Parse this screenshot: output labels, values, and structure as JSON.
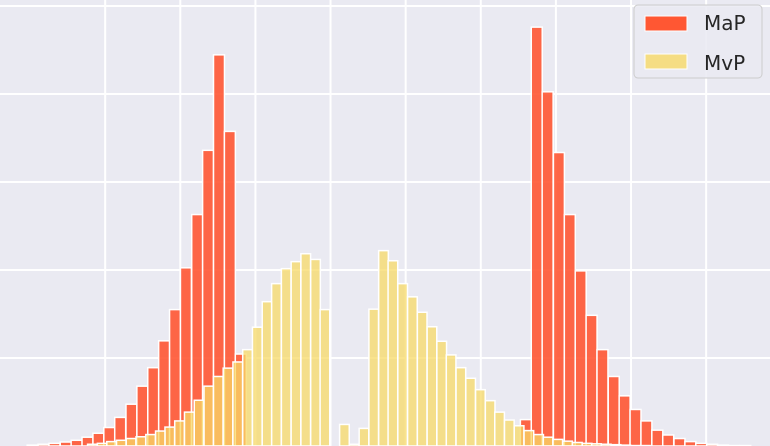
{
  "chart_data": {
    "type": "bar",
    "title": "",
    "xlabel": "",
    "ylabel": "",
    "grid": true,
    "legend_position": "top-right",
    "xlim": [
      -0.88,
      1.17
    ],
    "ylim": [
      0,
      1.0
    ],
    "bin_width": 0.0292,
    "series": [
      {
        "name": "MaP",
        "color": "#ff5733",
        "x": [
          -0.793,
          -0.764,
          -0.735,
          -0.705,
          -0.676,
          -0.647,
          -0.618,
          -0.589,
          -0.56,
          -0.53,
          -0.501,
          -0.472,
          -0.443,
          -0.414,
          -0.385,
          -0.355,
          -0.326,
          -0.297,
          -0.268,
          -0.239,
          0.52,
          0.549,
          0.578,
          0.608,
          0.637,
          0.666,
          0.695,
          0.724,
          0.754,
          0.783,
          0.812,
          0.841,
          0.87,
          0.899,
          0.929,
          0.958,
          0.987,
          1.016,
          1.045,
          1.074,
          1.104
        ],
        "values": [
          0.002,
          0.004,
          0.006,
          0.009,
          0.013,
          0.02,
          0.029,
          0.042,
          0.065,
          0.095,
          0.136,
          0.178,
          0.239,
          0.31,
          0.405,
          0.526,
          0.672,
          0.889,
          0.715,
          0.209,
          0.06,
          0.952,
          0.805,
          0.667,
          0.526,
          0.398,
          0.297,
          0.219,
          0.158,
          0.114,
          0.083,
          0.057,
          0.036,
          0.025,
          0.017,
          0.01,
          0.006,
          0.004,
          0.002,
          0.001,
          0.001
        ]
      },
      {
        "name": "MvP",
        "color": "#f7d967",
        "x": [
          -0.634,
          -0.608,
          -0.583,
          -0.557,
          -0.531,
          -0.505,
          -0.479,
          -0.453,
          -0.428,
          -0.402,
          -0.376,
          -0.35,
          -0.324,
          -0.299,
          -0.273,
          -0.247,
          -0.221,
          -0.195,
          -0.169,
          -0.144,
          -0.118,
          -0.092,
          -0.066,
          -0.04,
          -0.015,
          0.037,
          0.063,
          0.089,
          0.115,
          0.141,
          0.166,
          0.192,
          0.218,
          0.244,
          0.27,
          0.296,
          0.321,
          0.347,
          0.373,
          0.399,
          0.425,
          0.45,
          0.476,
          0.502,
          0.528,
          0.554,
          0.579,
          0.605,
          0.631,
          0.657,
          0.683,
          0.708,
          0.734,
          0.76,
          0.786,
          0.812,
          0.838
        ],
        "values": [
          0.004,
          0.006,
          0.01,
          0.013,
          0.017,
          0.021,
          0.026,
          0.034,
          0.043,
          0.057,
          0.077,
          0.104,
          0.136,
          0.158,
          0.177,
          0.191,
          0.219,
          0.27,
          0.328,
          0.369,
          0.403,
          0.419,
          0.437,
          0.424,
          0.31,
          0.049,
          0.004,
          0.04,
          0.311,
          0.444,
          0.421,
          0.369,
          0.339,
          0.304,
          0.271,
          0.238,
          0.207,
          0.178,
          0.154,
          0.128,
          0.103,
          0.077,
          0.059,
          0.046,
          0.035,
          0.026,
          0.02,
          0.015,
          0.011,
          0.008,
          0.006,
          0.005,
          0.004,
          0.003,
          0.002,
          0.001,
          0.001
        ]
      }
    ]
  }
}
